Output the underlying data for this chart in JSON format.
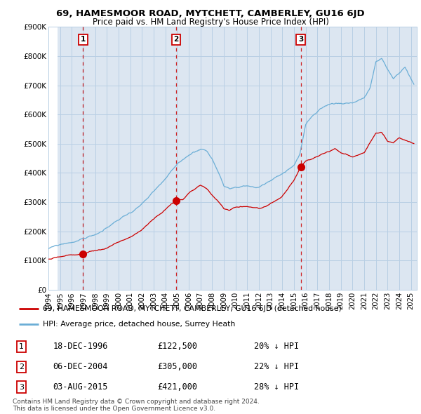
{
  "title": "69, HAMESMOOR ROAD, MYTCHETT, CAMBERLEY, GU16 6JD",
  "subtitle": "Price paid vs. HM Land Registry's House Price Index (HPI)",
  "ylim": [
    0,
    900000
  ],
  "yticks": [
    0,
    100000,
    200000,
    300000,
    400000,
    500000,
    600000,
    700000,
    800000,
    900000
  ],
  "ytick_labels": [
    "£0",
    "£100K",
    "£200K",
    "£300K",
    "£400K",
    "£500K",
    "£600K",
    "£700K",
    "£800K",
    "£900K"
  ],
  "hpi_color": "#6baed6",
  "price_color": "#cc0000",
  "grid_color": "#b8cfe4",
  "plot_bg_color": "#dce6f1",
  "purchases": [
    {
      "label": "1",
      "date_num": 1996.96,
      "price": 122500,
      "hpi_pct": "20% ↓ HPI",
      "date_str": "18-DEC-1996"
    },
    {
      "label": "2",
      "date_num": 2004.92,
      "price": 305000,
      "hpi_pct": "22% ↓ HPI",
      "date_str": "06-DEC-2004"
    },
    {
      "label": "3",
      "date_num": 2015.58,
      "price": 421000,
      "hpi_pct": "28% ↓ HPI",
      "date_str": "03-AUG-2015"
    }
  ],
  "legend_line1": "69, HAMESMOOR ROAD, MYTCHETT, CAMBERLEY, GU16 6JD (detached house)",
  "legend_line2": "HPI: Average price, detached house, Surrey Heath",
  "footnote": "Contains HM Land Registry data © Crown copyright and database right 2024.\nThis data is licensed under the Open Government Licence v3.0.",
  "xmin": 1994.0,
  "xmax": 2025.5,
  "xticks": [
    1994,
    1995,
    1996,
    1997,
    1998,
    1999,
    2000,
    2001,
    2002,
    2003,
    2004,
    2005,
    2006,
    2007,
    2008,
    2009,
    2010,
    2011,
    2012,
    2013,
    2014,
    2015,
    2016,
    2017,
    2018,
    2019,
    2020,
    2021,
    2022,
    2023,
    2024,
    2025
  ]
}
